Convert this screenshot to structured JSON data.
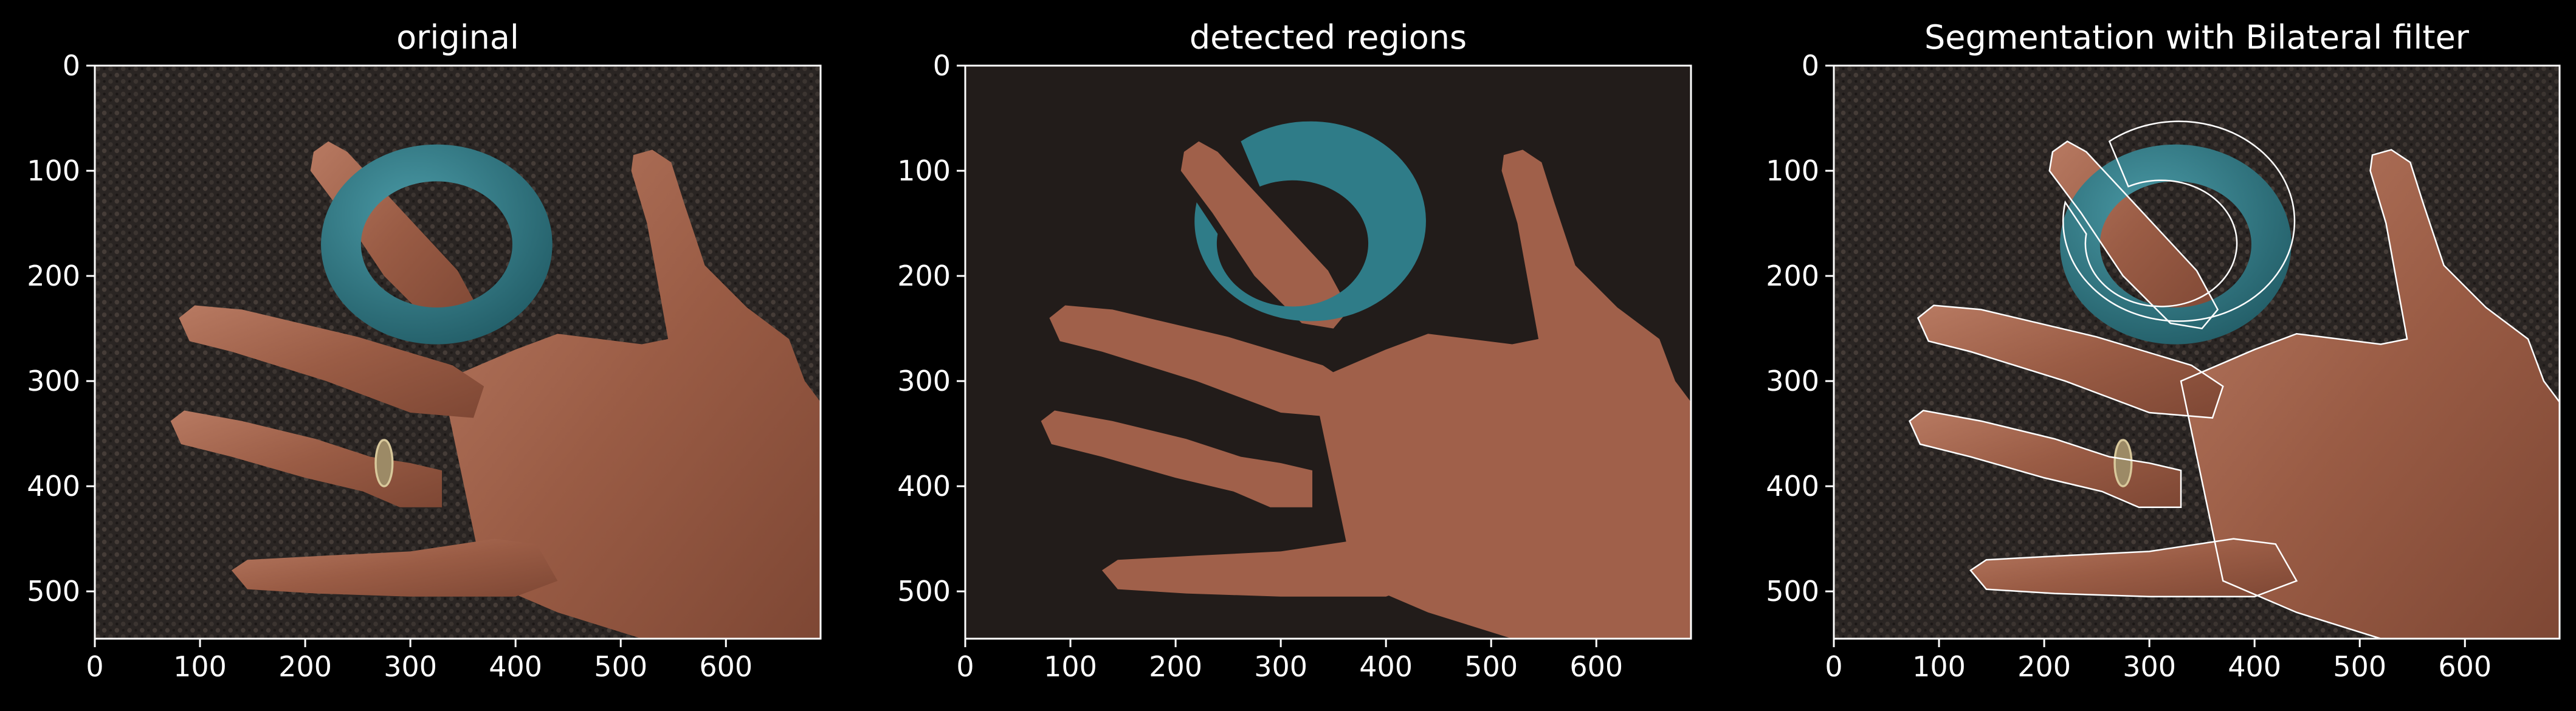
{
  "figure": {
    "background": "#000000",
    "text_color": "#ffffff"
  },
  "chart_data": [
    {
      "type": "image",
      "title": "original",
      "xlim": [
        0,
        690
      ],
      "ylim": [
        545,
        0
      ],
      "xticks": [
        0,
        100,
        200,
        300,
        400,
        500,
        600
      ],
      "yticks": [
        0,
        100,
        200,
        300,
        400,
        500
      ],
      "xtick_labels": [
        "0",
        "100",
        "200",
        "300",
        "400",
        "500",
        "600"
      ],
      "ytick_labels": [
        "0",
        "100",
        "200",
        "300",
        "400",
        "500"
      ],
      "grid": false
    },
    {
      "type": "image",
      "title": "detected regions",
      "xlim": [
        0,
        690
      ],
      "ylim": [
        545,
        0
      ],
      "xticks": [
        0,
        100,
        200,
        300,
        400,
        500,
        600
      ],
      "yticks": [
        0,
        100,
        200,
        300,
        400,
        500
      ],
      "xtick_labels": [
        "0",
        "100",
        "200",
        "300",
        "400",
        "500",
        "600"
      ],
      "ytick_labels": [
        "0",
        "100",
        "200",
        "300",
        "400",
        "500"
      ],
      "grid": false
    },
    {
      "type": "image",
      "title": "Segmentation with Bilateral filter",
      "xlim": [
        0,
        690
      ],
      "ylim": [
        545,
        0
      ],
      "xticks": [
        0,
        100,
        200,
        300,
        400,
        500,
        600
      ],
      "yticks": [
        0,
        100,
        200,
        300,
        400,
        500
      ],
      "xtick_labels": [
        "0",
        "100",
        "200",
        "300",
        "400",
        "500",
        "600"
      ],
      "ytick_labels": [
        "0",
        "100",
        "200",
        "300",
        "400",
        "500"
      ],
      "grid": false
    }
  ],
  "image_colors": {
    "background_texture": "#2a2523",
    "region_background": "#221c1a",
    "skin": "#a0604a",
    "skin_dark": "#7d4632",
    "ring": "#2f7c88",
    "ring_dark": "#235e68",
    "contour": "#ffffff"
  }
}
